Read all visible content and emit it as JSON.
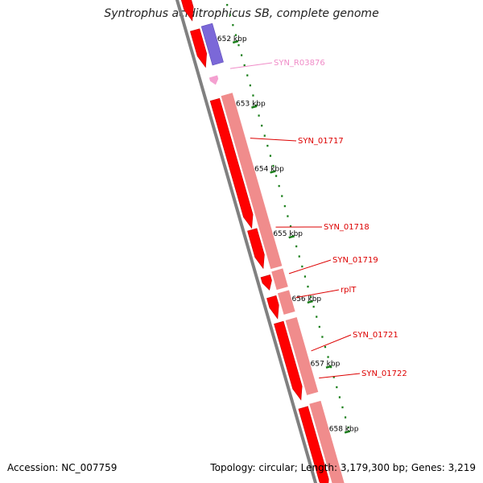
{
  "title": "Syntrophus aciditrophicus SB, complete genome",
  "accession": "Accession: NC_007759",
  "topology": "Topology: circular; Length: 3,179,300 bp; Genes: 3,219",
  "colors": {
    "backbone": "#808080",
    "cds": "#ff0000",
    "cds_dark": "#c80000",
    "gene": "#f08c8c",
    "ncrna": "#f4a0d0",
    "other": "#7b68d8",
    "tick": "#1a7f1a",
    "label_red": "#dd0000",
    "label_pink": "#f08cc8"
  },
  "kbp_ticks": [
    "652 kbp",
    "653 kbp",
    "654 kbp",
    "655 kbp",
    "656 kbp",
    "657 kbp",
    "658 kbp"
  ],
  "gene_labels": [
    "SYN_R03876",
    "SYN_01717",
    "SYN_01718",
    "SYN_01719",
    "rplT",
    "SYN_01721",
    "SYN_01722"
  ]
}
